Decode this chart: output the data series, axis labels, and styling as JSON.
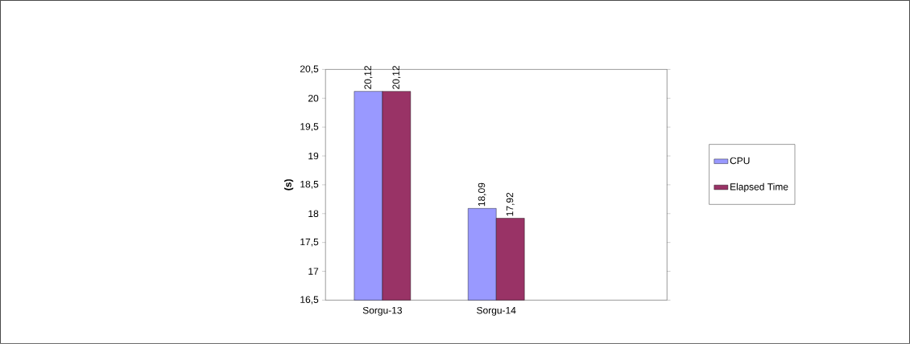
{
  "chart_data": {
    "type": "bar",
    "ylabel": "(s)",
    "categories": [
      "Sorgu-13",
      "Sorgu-14",
      null
    ],
    "series": [
      {
        "name": "CPU",
        "color": "#9999ff",
        "values": [
          20.12,
          18.09,
          null
        ],
        "value_labels": [
          "20,12",
          "18,09",
          null
        ]
      },
      {
        "name": "Elapsed Time",
        "color": "#993366",
        "values": [
          20.12,
          17.92,
          null
        ],
        "value_labels": [
          "20,12",
          "17,92",
          null
        ]
      }
    ],
    "ylim": [
      16.5,
      20.5
    ],
    "yticks": [
      {
        "value": 16.5,
        "label": "16,5"
      },
      17,
      {
        "value": 17.5,
        "label": "17,5"
      },
      18,
      {
        "value": 18.5,
        "label": "18,5"
      },
      19,
      {
        "value": 19.5,
        "label": "19,5"
      },
      20,
      {
        "value": 20.5,
        "label": "20,5"
      }
    ],
    "grid": false,
    "legend": "right"
  }
}
